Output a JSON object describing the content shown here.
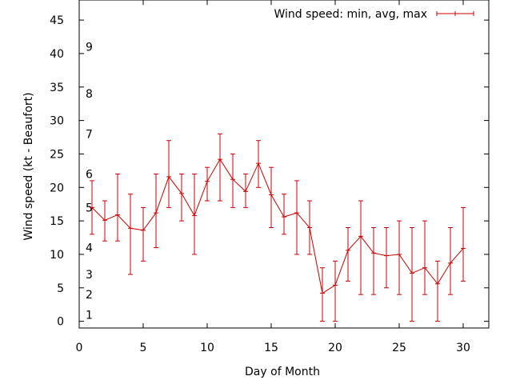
{
  "chart_data": {
    "type": "line",
    "title": "",
    "xlabel": "Day of Month",
    "ylabel": "Wind speed (kt - Beaufort)",
    "xlim": [
      0,
      32
    ],
    "ylim": [
      -1,
      48
    ],
    "xticks": [
      0,
      5,
      10,
      15,
      20,
      25,
      30
    ],
    "yticks": [
      0,
      5,
      10,
      15,
      20,
      25,
      30,
      35,
      40,
      45
    ],
    "grid": false,
    "legend_position": "top-right",
    "series": [
      {
        "name": "Wind speed: min, avg, max",
        "color": "#cc0000",
        "x": [
          1,
          2,
          3,
          4,
          5,
          6,
          7,
          8,
          9,
          10,
          11,
          12,
          13,
          14,
          15,
          16,
          17,
          18,
          19,
          20,
          21,
          22,
          23,
          24,
          25,
          26,
          27,
          28,
          29,
          30
        ],
        "avg": [
          17.0,
          15.1,
          15.9,
          13.9,
          13.6,
          16.2,
          21.6,
          19.1,
          15.8,
          20.9,
          24.2,
          21.2,
          19.4,
          23.6,
          18.9,
          15.6,
          16.2,
          14.0,
          4.2,
          5.4,
          10.6,
          12.7,
          10.2,
          9.8,
          10.0,
          7.2,
          8.0,
          5.6,
          8.7,
          10.9
        ],
        "min": [
          13,
          12,
          12,
          7,
          9,
          11,
          17,
          15,
          10,
          18,
          18,
          17,
          17,
          20,
          14,
          13,
          10,
          10,
          0,
          0,
          6,
          4,
          4,
          5,
          4,
          0,
          4,
          0,
          4,
          6
        ],
        "max": [
          21,
          18,
          22,
          19,
          17,
          22,
          27,
          22,
          22,
          23,
          28,
          25,
          22,
          27,
          23,
          19,
          21,
          18,
          8,
          9,
          14,
          18,
          14,
          14,
          15,
          14,
          15,
          9,
          14,
          17
        ]
      }
    ],
    "beaufort_labels": [
      {
        "label": "1",
        "value": 1
      },
      {
        "label": "2",
        "value": 4
      },
      {
        "label": "3",
        "value": 7
      },
      {
        "label": "4",
        "value": 11
      },
      {
        "label": "5",
        "value": 17
      },
      {
        "label": "6",
        "value": 22
      },
      {
        "label": "7",
        "value": 28
      },
      {
        "label": "8",
        "value": 34
      },
      {
        "label": "9",
        "value": 41
      }
    ]
  }
}
